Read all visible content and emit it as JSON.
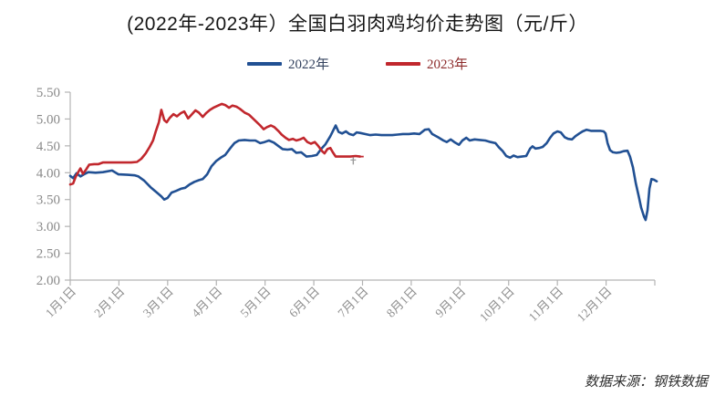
{
  "footer": {
    "source_label": "数据来源：钢铁数据"
  },
  "chart_data": {
    "type": "line",
    "title": "(2022年-2023年）全国白羽肉鸡均价走势图（元/斤）",
    "xlabel": "",
    "ylabel": "",
    "grid": false,
    "legend_position": "top-center",
    "x_axis": {
      "range": [
        1,
        13
      ],
      "tick_positions": [
        1,
        2,
        3,
        4,
        5,
        6,
        7,
        8,
        9,
        10,
        11,
        12,
        13
      ],
      "tick_labels": [
        "1月1日",
        "2月1日",
        "3月1日",
        "4月1日",
        "5月1日",
        "6月1日",
        "7月1日",
        "8月1日",
        "9月1日",
        "10月1日",
        "11月1日",
        "12月1日",
        ""
      ]
    },
    "y_axis": {
      "range": [
        2.0,
        5.5
      ],
      "tick_values": [
        2.0,
        2.5,
        3.0,
        3.5,
        4.0,
        4.5,
        5.0,
        5.5
      ],
      "tick_labels": [
        "2.00",
        "2.50",
        "3.00",
        "3.50",
        "4.00",
        "4.50",
        "5.00",
        "5.50"
      ]
    },
    "axis_color": "#b3b3b3",
    "series": [
      {
        "name": "2022年",
        "color": "#215093",
        "label_color": "#33425e",
        "points": [
          [
            1.0,
            3.94
          ],
          [
            1.06,
            3.9
          ],
          [
            1.13,
            3.99
          ],
          [
            1.21,
            3.93
          ],
          [
            1.28,
            3.97
          ],
          [
            1.37,
            4.01
          ],
          [
            1.52,
            4.0
          ],
          [
            1.67,
            4.01
          ],
          [
            1.86,
            4.04
          ],
          [
            1.99,
            3.97
          ],
          [
            2.18,
            3.96
          ],
          [
            2.33,
            3.95
          ],
          [
            2.4,
            3.93
          ],
          [
            2.52,
            3.85
          ],
          [
            2.65,
            3.73
          ],
          [
            2.78,
            3.63
          ],
          [
            2.87,
            3.56
          ],
          [
            2.93,
            3.5
          ],
          [
            3.0,
            3.53
          ],
          [
            3.08,
            3.63
          ],
          [
            3.17,
            3.66
          ],
          [
            3.27,
            3.7
          ],
          [
            3.36,
            3.72
          ],
          [
            3.45,
            3.78
          ],
          [
            3.55,
            3.83
          ],
          [
            3.64,
            3.86
          ],
          [
            3.72,
            3.88
          ],
          [
            3.81,
            3.97
          ],
          [
            3.9,
            4.12
          ],
          [
            4.0,
            4.22
          ],
          [
            4.09,
            4.28
          ],
          [
            4.18,
            4.33
          ],
          [
            4.28,
            4.45
          ],
          [
            4.37,
            4.55
          ],
          [
            4.46,
            4.6
          ],
          [
            4.58,
            4.61
          ],
          [
            4.69,
            4.6
          ],
          [
            4.8,
            4.6
          ],
          [
            4.9,
            4.55
          ],
          [
            4.99,
            4.57
          ],
          [
            5.08,
            4.6
          ],
          [
            5.18,
            4.56
          ],
          [
            5.27,
            4.5
          ],
          [
            5.36,
            4.44
          ],
          [
            5.46,
            4.43
          ],
          [
            5.55,
            4.44
          ],
          [
            5.64,
            4.37
          ],
          [
            5.74,
            4.38
          ],
          [
            5.85,
            4.3
          ],
          [
            5.96,
            4.31
          ],
          [
            6.06,
            4.33
          ],
          [
            6.15,
            4.44
          ],
          [
            6.24,
            4.53
          ],
          [
            6.34,
            4.68
          ],
          [
            6.45,
            4.88
          ],
          [
            6.51,
            4.76
          ],
          [
            6.58,
            4.73
          ],
          [
            6.66,
            4.77
          ],
          [
            6.73,
            4.72
          ],
          [
            6.81,
            4.7
          ],
          [
            6.88,
            4.75
          ],
          [
            6.95,
            4.74
          ],
          [
            7.05,
            4.72
          ],
          [
            7.16,
            4.7
          ],
          [
            7.27,
            4.71
          ],
          [
            7.39,
            4.7
          ],
          [
            7.5,
            4.7
          ],
          [
            7.61,
            4.7
          ],
          [
            7.72,
            4.71
          ],
          [
            7.83,
            4.72
          ],
          [
            7.95,
            4.72
          ],
          [
            8.06,
            4.73
          ],
          [
            8.17,
            4.72
          ],
          [
            8.28,
            4.8
          ],
          [
            8.36,
            4.81
          ],
          [
            8.43,
            4.72
          ],
          [
            8.55,
            4.66
          ],
          [
            8.66,
            4.6
          ],
          [
            8.73,
            4.57
          ],
          [
            8.81,
            4.62
          ],
          [
            8.9,
            4.56
          ],
          [
            8.98,
            4.52
          ],
          [
            9.05,
            4.6
          ],
          [
            9.13,
            4.65
          ],
          [
            9.2,
            4.6
          ],
          [
            9.3,
            4.62
          ],
          [
            9.41,
            4.61
          ],
          [
            9.52,
            4.6
          ],
          [
            9.63,
            4.57
          ],
          [
            9.73,
            4.55
          ],
          [
            9.8,
            4.47
          ],
          [
            9.88,
            4.4
          ],
          [
            9.95,
            4.31
          ],
          [
            10.03,
            4.28
          ],
          [
            10.1,
            4.32
          ],
          [
            10.18,
            4.29
          ],
          [
            10.27,
            4.3
          ],
          [
            10.36,
            4.31
          ],
          [
            10.44,
            4.45
          ],
          [
            10.49,
            4.49
          ],
          [
            10.55,
            4.45
          ],
          [
            10.63,
            4.46
          ],
          [
            10.7,
            4.48
          ],
          [
            10.78,
            4.55
          ],
          [
            10.85,
            4.65
          ],
          [
            10.92,
            4.73
          ],
          [
            11.0,
            4.77
          ],
          [
            11.07,
            4.75
          ],
          [
            11.15,
            4.66
          ],
          [
            11.22,
            4.63
          ],
          [
            11.3,
            4.62
          ],
          [
            11.37,
            4.68
          ],
          [
            11.45,
            4.73
          ],
          [
            11.52,
            4.77
          ],
          [
            11.6,
            4.8
          ],
          [
            11.69,
            4.78
          ],
          [
            11.78,
            4.78
          ],
          [
            11.88,
            4.78
          ],
          [
            11.95,
            4.77
          ],
          [
            11.99,
            4.73
          ],
          [
            12.03,
            4.55
          ],
          [
            12.08,
            4.42
          ],
          [
            12.14,
            4.38
          ],
          [
            12.21,
            4.37
          ],
          [
            12.29,
            4.38
          ],
          [
            12.36,
            4.4
          ],
          [
            12.44,
            4.41
          ],
          [
            12.49,
            4.3
          ],
          [
            12.55,
            4.1
          ],
          [
            12.61,
            3.8
          ],
          [
            12.67,
            3.56
          ],
          [
            12.72,
            3.35
          ],
          [
            12.78,
            3.18
          ],
          [
            12.81,
            3.12
          ],
          [
            12.85,
            3.3
          ],
          [
            12.89,
            3.7
          ],
          [
            12.93,
            3.88
          ],
          [
            12.98,
            3.87
          ],
          [
            13.04,
            3.84
          ]
        ]
      },
      {
        "name": "2023年",
        "color": "#c1272d",
        "label_color": "#8c2a2a",
        "points": [
          [
            1.0,
            3.78
          ],
          [
            1.06,
            3.8
          ],
          [
            1.11,
            3.92
          ],
          [
            1.17,
            4.02
          ],
          [
            1.21,
            4.08
          ],
          [
            1.26,
            3.98
          ],
          [
            1.32,
            4.05
          ],
          [
            1.39,
            4.15
          ],
          [
            1.49,
            4.16
          ],
          [
            1.58,
            4.16
          ],
          [
            1.67,
            4.19
          ],
          [
            1.81,
            4.19
          ],
          [
            1.96,
            4.19
          ],
          [
            2.1,
            4.19
          ],
          [
            2.25,
            4.19
          ],
          [
            2.37,
            4.2
          ],
          [
            2.46,
            4.26
          ],
          [
            2.55,
            4.36
          ],
          [
            2.63,
            4.48
          ],
          [
            2.7,
            4.6
          ],
          [
            2.76,
            4.78
          ],
          [
            2.82,
            4.94
          ],
          [
            2.87,
            5.17
          ],
          [
            2.93,
            4.98
          ],
          [
            2.98,
            4.94
          ],
          [
            3.04,
            5.02
          ],
          [
            3.12,
            5.09
          ],
          [
            3.19,
            5.05
          ],
          [
            3.27,
            5.11
          ],
          [
            3.34,
            5.14
          ],
          [
            3.42,
            5.01
          ],
          [
            3.49,
            5.08
          ],
          [
            3.57,
            5.16
          ],
          [
            3.64,
            5.12
          ],
          [
            3.72,
            5.04
          ],
          [
            3.79,
            5.11
          ],
          [
            3.87,
            5.17
          ],
          [
            3.94,
            5.21
          ],
          [
            4.01,
            5.24
          ],
          [
            4.11,
            5.28
          ],
          [
            4.18,
            5.26
          ],
          [
            4.26,
            5.21
          ],
          [
            4.33,
            5.25
          ],
          [
            4.41,
            5.23
          ],
          [
            4.48,
            5.19
          ],
          [
            4.58,
            5.12
          ],
          [
            4.67,
            5.08
          ],
          [
            4.75,
            5.01
          ],
          [
            4.82,
            4.95
          ],
          [
            4.9,
            4.88
          ],
          [
            4.97,
            4.81
          ],
          [
            5.04,
            4.85
          ],
          [
            5.12,
            4.88
          ],
          [
            5.19,
            4.85
          ],
          [
            5.27,
            4.78
          ],
          [
            5.34,
            4.71
          ],
          [
            5.42,
            4.65
          ],
          [
            5.49,
            4.61
          ],
          [
            5.57,
            4.63
          ],
          [
            5.64,
            4.6
          ],
          [
            5.72,
            4.62
          ],
          [
            5.79,
            4.65
          ],
          [
            5.87,
            4.57
          ],
          [
            5.94,
            4.54
          ],
          [
            6.02,
            4.57
          ],
          [
            6.09,
            4.5
          ],
          [
            6.17,
            4.4
          ],
          [
            6.22,
            4.36
          ],
          [
            6.28,
            4.44
          ],
          [
            6.34,
            4.46
          ],
          [
            6.39,
            4.38
          ],
          [
            6.45,
            4.3
          ],
          [
            6.52,
            4.3
          ],
          [
            6.64,
            4.3
          ],
          [
            6.75,
            4.3
          ],
          [
            6.86,
            4.31
          ],
          [
            6.95,
            4.3
          ]
        ],
        "dashed_tail": [
          [
            6.95,
            4.3
          ],
          [
            7.01,
            4.3
          ],
          [
            7.07,
            4.31
          ]
        ],
        "end_marker": {
          "x": 6.81,
          "y": 4.22,
          "color": "#9a9a9a"
        }
      }
    ]
  }
}
